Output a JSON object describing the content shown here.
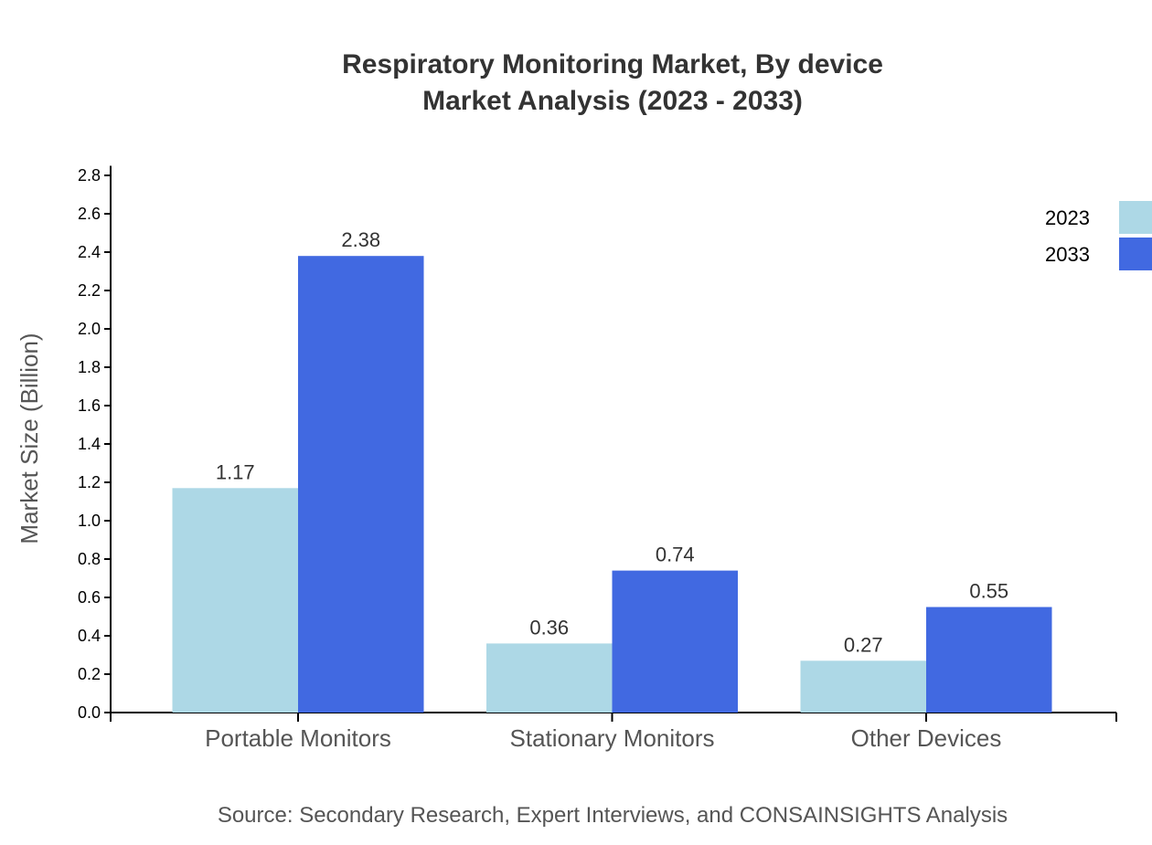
{
  "chart_data": {
    "type": "bar",
    "title": "Respiratory Monitoring Market, By device",
    "subtitle": "Market Analysis (2023 - 2033)",
    "xlabel": "",
    "ylabel": "Market Size (Billion)",
    "ylim": [
      0,
      2.85
    ],
    "yticks": [
      "0.0",
      "0.2",
      "0.4",
      "0.6",
      "0.8",
      "1.0",
      "1.2",
      "1.4",
      "1.6",
      "1.8",
      "2.0",
      "2.2",
      "2.4",
      "2.6",
      "2.8"
    ],
    "categories": [
      "Portable Monitors",
      "Stationary Monitors",
      "Other Devices"
    ],
    "series": [
      {
        "name": "2023",
        "values": [
          1.17,
          0.36,
          0.27
        ],
        "labels": [
          "1.17",
          "0.36",
          "0.27"
        ],
        "color": "#ADD8E6"
      },
      {
        "name": "2033",
        "values": [
          2.38,
          0.74,
          0.55
        ],
        "labels": [
          "2.38",
          "0.74",
          "0.55"
        ],
        "color": "#4169E1"
      }
    ],
    "legend": "top-right",
    "grid": false,
    "source": "Source: Secondary Research, Expert Interviews, and CONSAINSIGHTS Analysis"
  }
}
